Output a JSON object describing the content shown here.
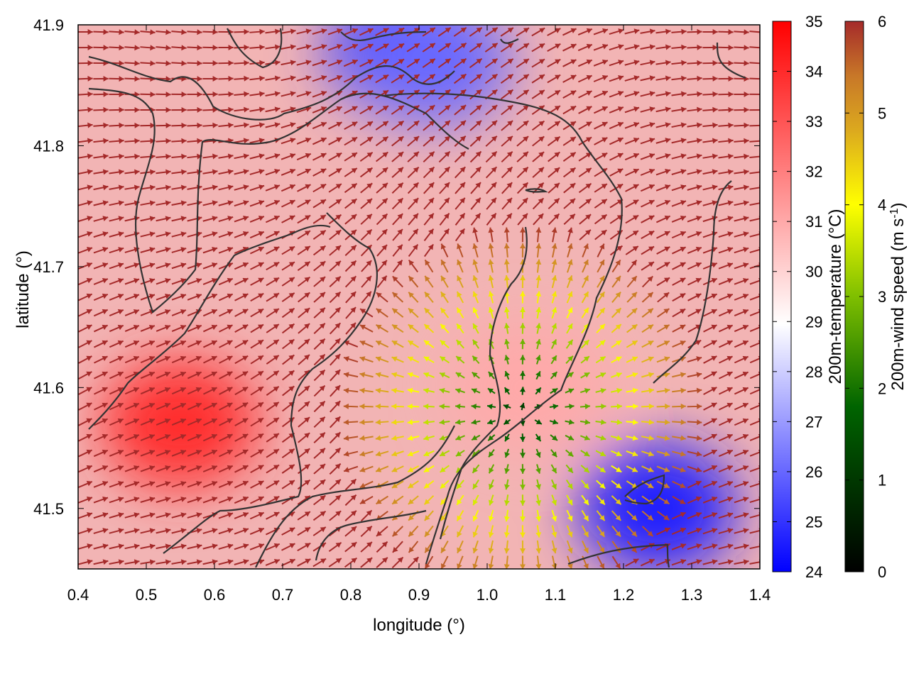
{
  "chart_data": {
    "type": "heatmap",
    "xlabel": "longitude (°)",
    "ylabel": "latitude (°)",
    "xlim": [
      0.4,
      1.4
    ],
    "ylim": [
      41.45,
      41.9
    ],
    "x_ticks": [
      "0.4",
      "0.5",
      "0.6",
      "0.7",
      "0.8",
      "0.9",
      "1.0",
      "1.1",
      "1.2",
      "1.3",
      "1.4"
    ],
    "y_ticks": [
      "41.5",
      "41.6",
      "41.7",
      "41.8",
      "41.9"
    ],
    "temperature_colorbar": {
      "label": "200m-temperature (°C)",
      "range": [
        24,
        35
      ],
      "ticks": [
        "24",
        "25",
        "26",
        "27",
        "28",
        "29",
        "30",
        "31",
        "32",
        "33",
        "34",
        "35"
      ],
      "colors": [
        "#0000ff",
        "#ffffff",
        "#ff0000"
      ]
    },
    "windspeed_colorbar": {
      "label_main": "200m-wind speed (m s",
      "label_sup": "-1",
      "label_end": ")",
      "range": [
        0,
        6
      ],
      "ticks": [
        "0",
        "1",
        "2",
        "3",
        "4",
        "5",
        "6"
      ],
      "colors": [
        "#000000",
        "#006400",
        "#7fbf00",
        "#ffff00",
        "#dcaa1e",
        "#c87828",
        "#a52a2a"
      ]
    },
    "wind_field": {
      "gridlines": false,
      "calm_center": {
        "lon": 1.05,
        "lat": 41.58
      },
      "divergence": "outflow from calm centre near 1.05°E, 41.58°N",
      "background_speed": 6
    },
    "temperature_field": {
      "warm_regions": [
        {
          "lon": 0.55,
          "lat": 41.57,
          "value": 34
        },
        {
          "lon": 1.06,
          "lat": 41.6,
          "value": 31
        }
      ],
      "cool_regions": [
        {
          "lon": 0.88,
          "lat": 41.88,
          "value": 25
        },
        {
          "lon": 1.25,
          "lat": 41.5,
          "value": 24.5
        },
        {
          "lon": 0.92,
          "lat": 41.87,
          "value": 26
        }
      ]
    }
  }
}
